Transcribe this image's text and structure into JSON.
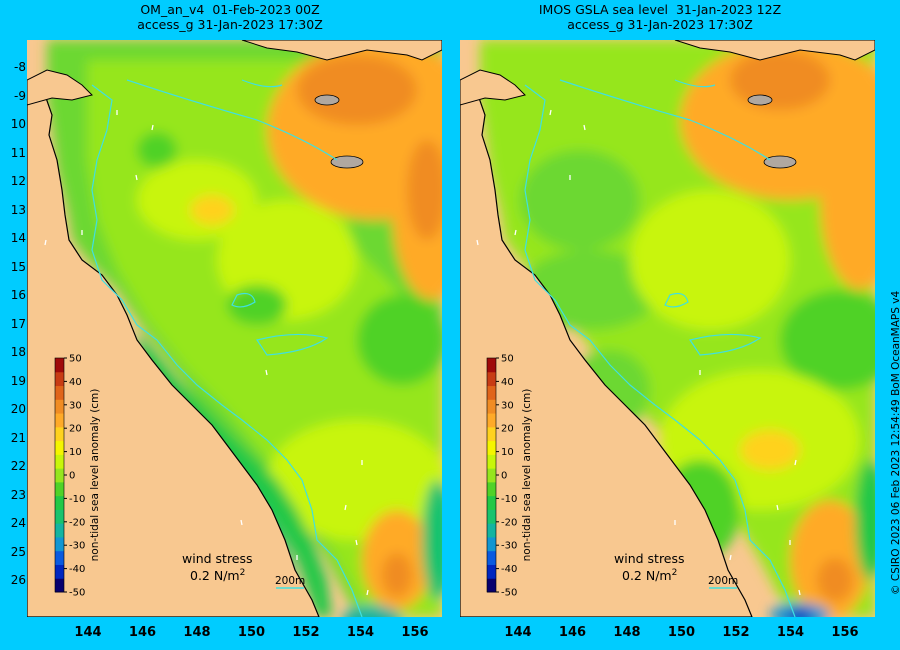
{
  "panels": [
    {
      "title_line1": "OM_an_v4  01-Feb-2023 00Z",
      "title_line2": "access_g 31-Jan-2023 17:30Z",
      "variant": "a"
    },
    {
      "title_line1": "IMOS GSLA sea level  31-Jan-2023 12Z",
      "title_line2": "access_g 31-Jan-2023 17:30Z",
      "variant": "b"
    }
  ],
  "lat_labels": [
    "-8",
    "-9",
    "10",
    "11",
    "12",
    "13",
    "14",
    "15",
    "16",
    "17",
    "18",
    "19",
    "20",
    "21",
    "22",
    "23",
    "24",
    "25",
    "26"
  ],
  "lon_labels": [
    "144",
    "146",
    "148",
    "150",
    "152",
    "154",
    "156"
  ],
  "colorbar": {
    "title": "non-tidal sea level anomaly (cm)",
    "ticks": [
      "50",
      "40",
      "30",
      "20",
      "10",
      "0",
      "-10",
      "-20",
      "-30",
      "-40",
      "-50"
    ],
    "colors": [
      "#08006e",
      "#0026c0",
      "#0a5ae0",
      "#1296d2",
      "#14b4a0",
      "#19c36e",
      "#23c846",
      "#50d228",
      "#96e61e",
      "#c8f50a",
      "#f5f500",
      "#ffd21e",
      "#ffaa28",
      "#f08c23",
      "#e0641a",
      "#c83c14",
      "#a00a0a"
    ]
  },
  "wind_stress": {
    "label": "wind stress",
    "value": "0.2 N/m",
    "superscript": "2"
  },
  "scale_bar": "200m",
  "credit": "© CSIRO 2023   06 Feb 2023 12:54:49 BoM OceanMAPS v4",
  "colors": {
    "background": "#00ccff",
    "land": "#f8c890",
    "coast_contour": "#40e0e0"
  }
}
